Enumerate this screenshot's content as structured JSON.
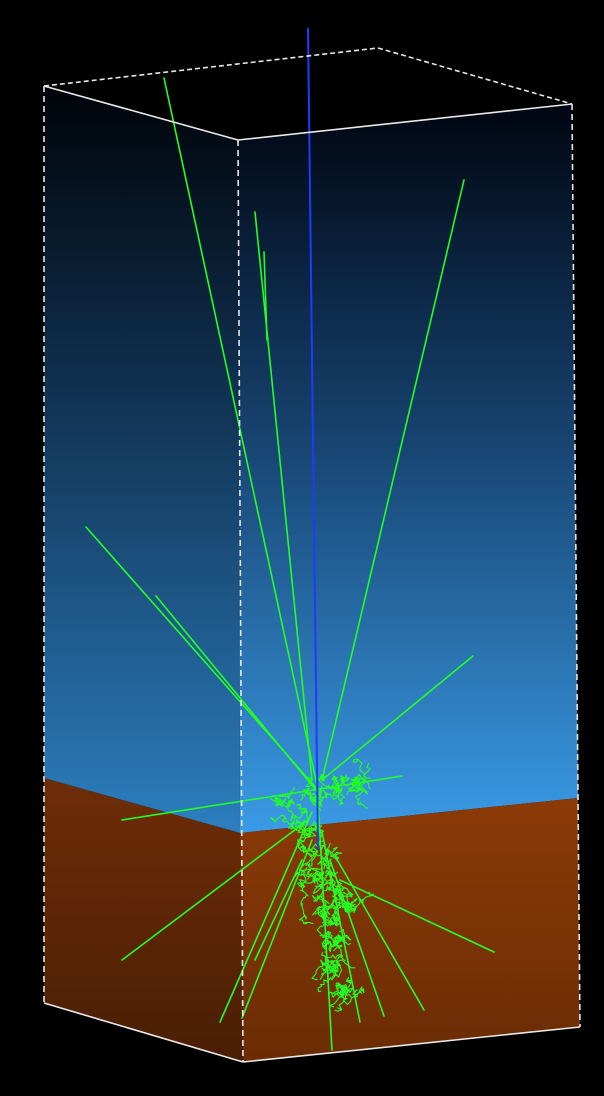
{
  "scene": {
    "background_color": "#000000",
    "upper_volume": {
      "color_top": "#000510",
      "color_mid": "#16426e",
      "color_bottom": "#3a9be6"
    },
    "lower_volume": {
      "color_top": "#8c3a06",
      "color_bottom": "#5a2404"
    },
    "box_edge_color": "#e8e8e8",
    "primary_track_color": "#1e3cff",
    "secondary_track_color": "#22ff22"
  }
}
